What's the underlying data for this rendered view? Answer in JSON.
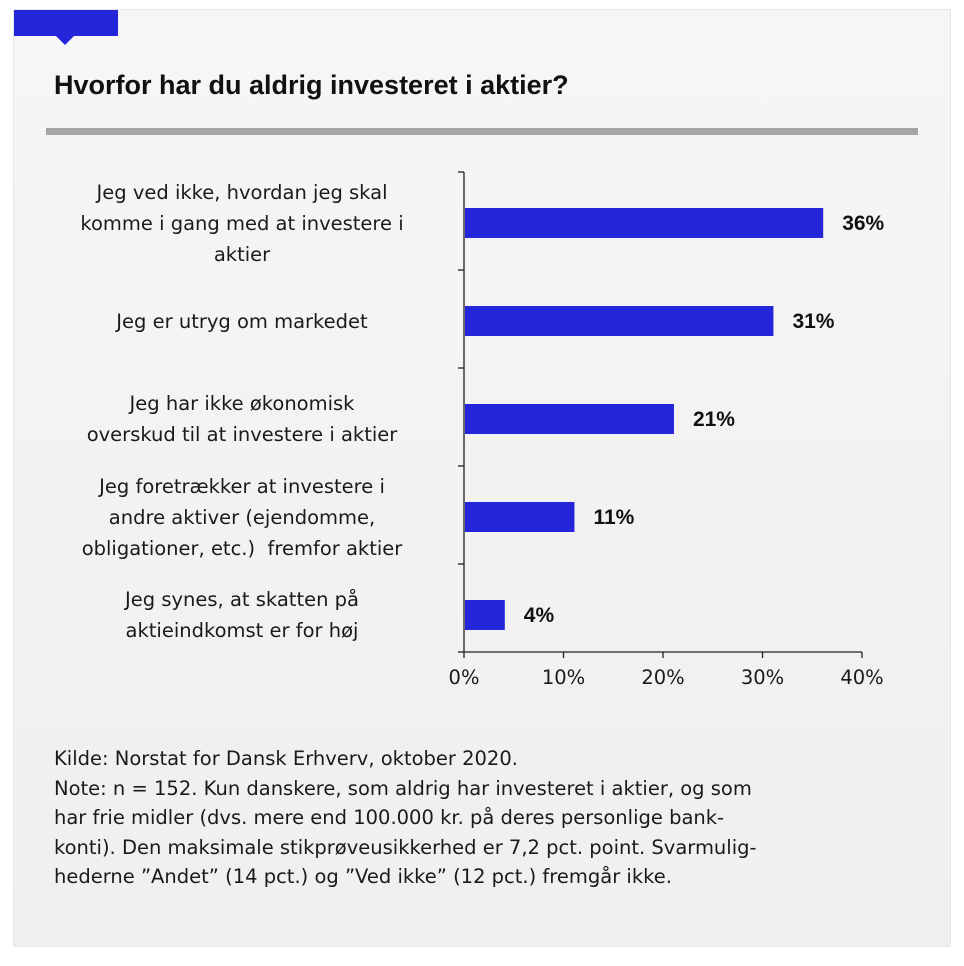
{
  "colors": {
    "accent": "#2525d9",
    "rule": "#a6a6a6",
    "text": "#1a1a1a"
  },
  "header": {
    "title": "Hvorfor har du aldrig investeret i aktier?"
  },
  "chart_data": {
    "type": "bar",
    "orientation": "horizontal",
    "title": "Hvorfor har du aldrig investeret i aktier?",
    "categories": [
      "Jeg ved ikke, hvordan jeg skal komme i gang med at investere i aktier",
      "Jeg er utryg om markedet",
      "Jeg har ikke økonomisk overskud til at investere i aktier",
      "Jeg foretrækker at investere i andre aktiver (ejendomme, obligationer, etc.) fremfor aktier",
      "Jeg synes, at skatten på aktieindkomst er for høj"
    ],
    "category_lines": [
      [
        "Jeg ved ikke, hvordan jeg skal",
        "komme i gang med at investere i",
        "aktier"
      ],
      [
        "Jeg er utryg om markedet"
      ],
      [
        "Jeg har ikke økonomisk",
        "overskud til at investere i aktier"
      ],
      [
        "Jeg foretrækker at investere i",
        "andre aktiver (ejendomme,",
        "obligationer, etc.)  fremfor aktier"
      ],
      [
        "Jeg synes, at skatten på",
        "aktieindkomst er for høj"
      ]
    ],
    "values": [
      36,
      31,
      21,
      11,
      4
    ],
    "data_labels": [
      "36%",
      "31%",
      "21%",
      "11%",
      "4%"
    ],
    "xlim": [
      0,
      40
    ],
    "x_ticks": [
      0,
      10,
      20,
      30,
      40
    ],
    "x_tick_labels": [
      "0%",
      "10%",
      "20%",
      "30%",
      "40%"
    ],
    "grid": false,
    "legend": "none"
  },
  "footer": {
    "lines": [
      "Kilde: Norstat for Dansk Erhverv, oktober 2020.",
      "Note: n = 152. Kun danskere, som aldrig har investeret i aktier, og som",
      "har frie midler (dvs. mere end 100.000 kr. på deres personlige bank-",
      "konti). Den maksimale stikprøveusikkerhed er 7,2 pct. point. Svarmulig-",
      "hederne ”Andet” (14 pct.) og ”Ved ikke” (12 pct.) fremgår ikke."
    ]
  }
}
